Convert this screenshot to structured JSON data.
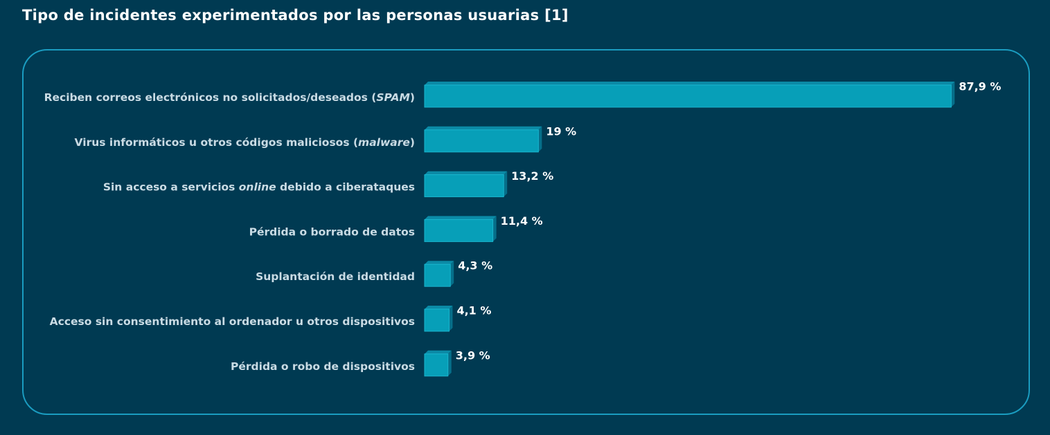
{
  "title": "Tipo de incidentes experimentados por las personas usuarias [1]",
  "chart_data": {
    "type": "bar",
    "orientation": "horizontal",
    "title": "Tipo de incidentes experimentados por las personas usuarias [1]",
    "xlabel": "",
    "ylabel": "",
    "xlim": [
      0,
      100
    ],
    "grid": false,
    "unit": "%",
    "categories": [
      "Reciben correos electrónicos no solicitados/deseados (SPAM)",
      "Virus informáticos u otros códigos maliciosos (malware)",
      "Sin acceso a servicios online debido a ciberataques",
      "Pérdida o borrado de datos",
      "Suplantación de identidad",
      "Acceso sin consentimiento al ordenador u otros dispositivos",
      "Pérdida o robo de dispositivos"
    ],
    "label_parts": [
      [
        {
          "t": "Reciben correos electrónicos no solicitados/deseados ("
        },
        {
          "t": "SPAM",
          "em": true
        },
        {
          "t": ")"
        }
      ],
      [
        {
          "t": "Virus informáticos u otros códigos maliciosos ("
        },
        {
          "t": "malware",
          "em": true
        },
        {
          "t": ")"
        }
      ],
      [
        {
          "t": "Sin acceso a servicios "
        },
        {
          "t": "online",
          "em": true
        },
        {
          "t": " debido a ciberataques"
        }
      ],
      [
        {
          "t": "Pérdida o borrado de datos"
        }
      ],
      [
        {
          "t": "Suplantación de identidad"
        }
      ],
      [
        {
          "t": "Acceso sin consentimiento al ordenador u otros dispositivos"
        }
      ],
      [
        {
          "t": "Pérdida o robo de dispositivos"
        }
      ]
    ],
    "values": [
      87.9,
      19,
      13.2,
      11.4,
      4.3,
      4.1,
      3.9
    ],
    "value_labels": [
      "87,9 %",
      "19 %",
      "13,2 %",
      "11,4 %",
      "4,3 %",
      "4,1 %",
      "3,9 %"
    ],
    "colors": {
      "bar_front": "#079fb8",
      "bar_top": "#0b8aa6",
      "bar_side": "#066f8a",
      "bar_edge": "#1ab6cf"
    }
  }
}
